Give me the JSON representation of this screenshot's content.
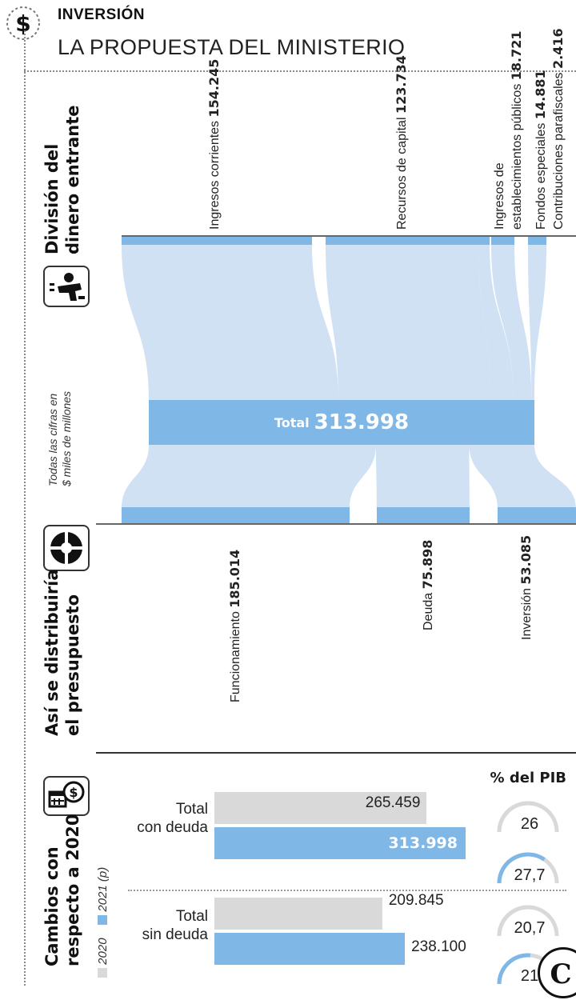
{
  "header": {
    "kicker": "INVERSIÓN",
    "title": "LA PROPUESTA DEL MINISTERIO"
  },
  "sections": {
    "incoming_title_l1": "División del",
    "incoming_title_l2": "dinero entrante",
    "distribution_title_l1": "Así se distribuiría",
    "distribution_title_l2": "el presupuesto",
    "changes_title_l1": "Cambios con",
    "changes_title_l2": "respecto a 2020"
  },
  "note_l1": "Todas las cifras en",
  "note_l2": "$ miles de millones",
  "colors": {
    "flow": "#cfe1f3",
    "bar": "#7fb7e6",
    "gray": "#d9d9d9",
    "ink": "#1a1a1a"
  },
  "icons": [
    "dollar-icon",
    "spending-person-icon",
    "pie-chart-icon",
    "calendar-money-icon"
  ],
  "chart_data": [
    {
      "type": "sankey",
      "total_label": "Total",
      "total": "313.998",
      "total_value": 313998,
      "inflows": [
        {
          "label": "Ingresos corrientes",
          "value": "154.245",
          "v": 154245
        },
        {
          "label": "Recursos de capital",
          "value": "123.734",
          "v": 123734
        },
        {
          "label": "Ingresos de",
          "label2": "establecimientos públicos",
          "value": "18.721",
          "v": 18721
        },
        {
          "label": "Fondos especiales",
          "value": "14.881",
          "v": 14881
        },
        {
          "label": "Contribuciones parafiscales",
          "value": "2.416",
          "v": 2416
        }
      ],
      "outflows": [
        {
          "label": "Funcionamiento",
          "value": "185.014",
          "v": 185014
        },
        {
          "label": "Deuda",
          "value": "75.898",
          "v": 75898
        },
        {
          "label": "Inversión",
          "value": "53.085",
          "v": 53085
        }
      ]
    },
    {
      "type": "bar",
      "pib_title": "% del PIB",
      "legend": [
        {
          "name": "2020"
        },
        {
          "name": "2021 (p)"
        }
      ],
      "xlim": [
        0,
        313998
      ],
      "groups": [
        {
          "label_l1": "Total",
          "label_l2": "con deuda",
          "v2020": 265459,
          "v2020_text": "265.459",
          "v2021": 313998,
          "v2021_text": "313.998",
          "pib2020": 26,
          "pib2020_text": "26",
          "pib2021": 27.7,
          "pib2021_text": "27,7"
        },
        {
          "label_l1": "Total",
          "label_l2": "sin deuda",
          "v2020": 209845,
          "v2020_text": "209.845",
          "v2021": 238100,
          "v2021_text": "238.100",
          "pib2020": 20.7,
          "pib2020_text": "20,7",
          "pib2021": 21,
          "pib2021_text": "21"
        }
      ]
    }
  ]
}
